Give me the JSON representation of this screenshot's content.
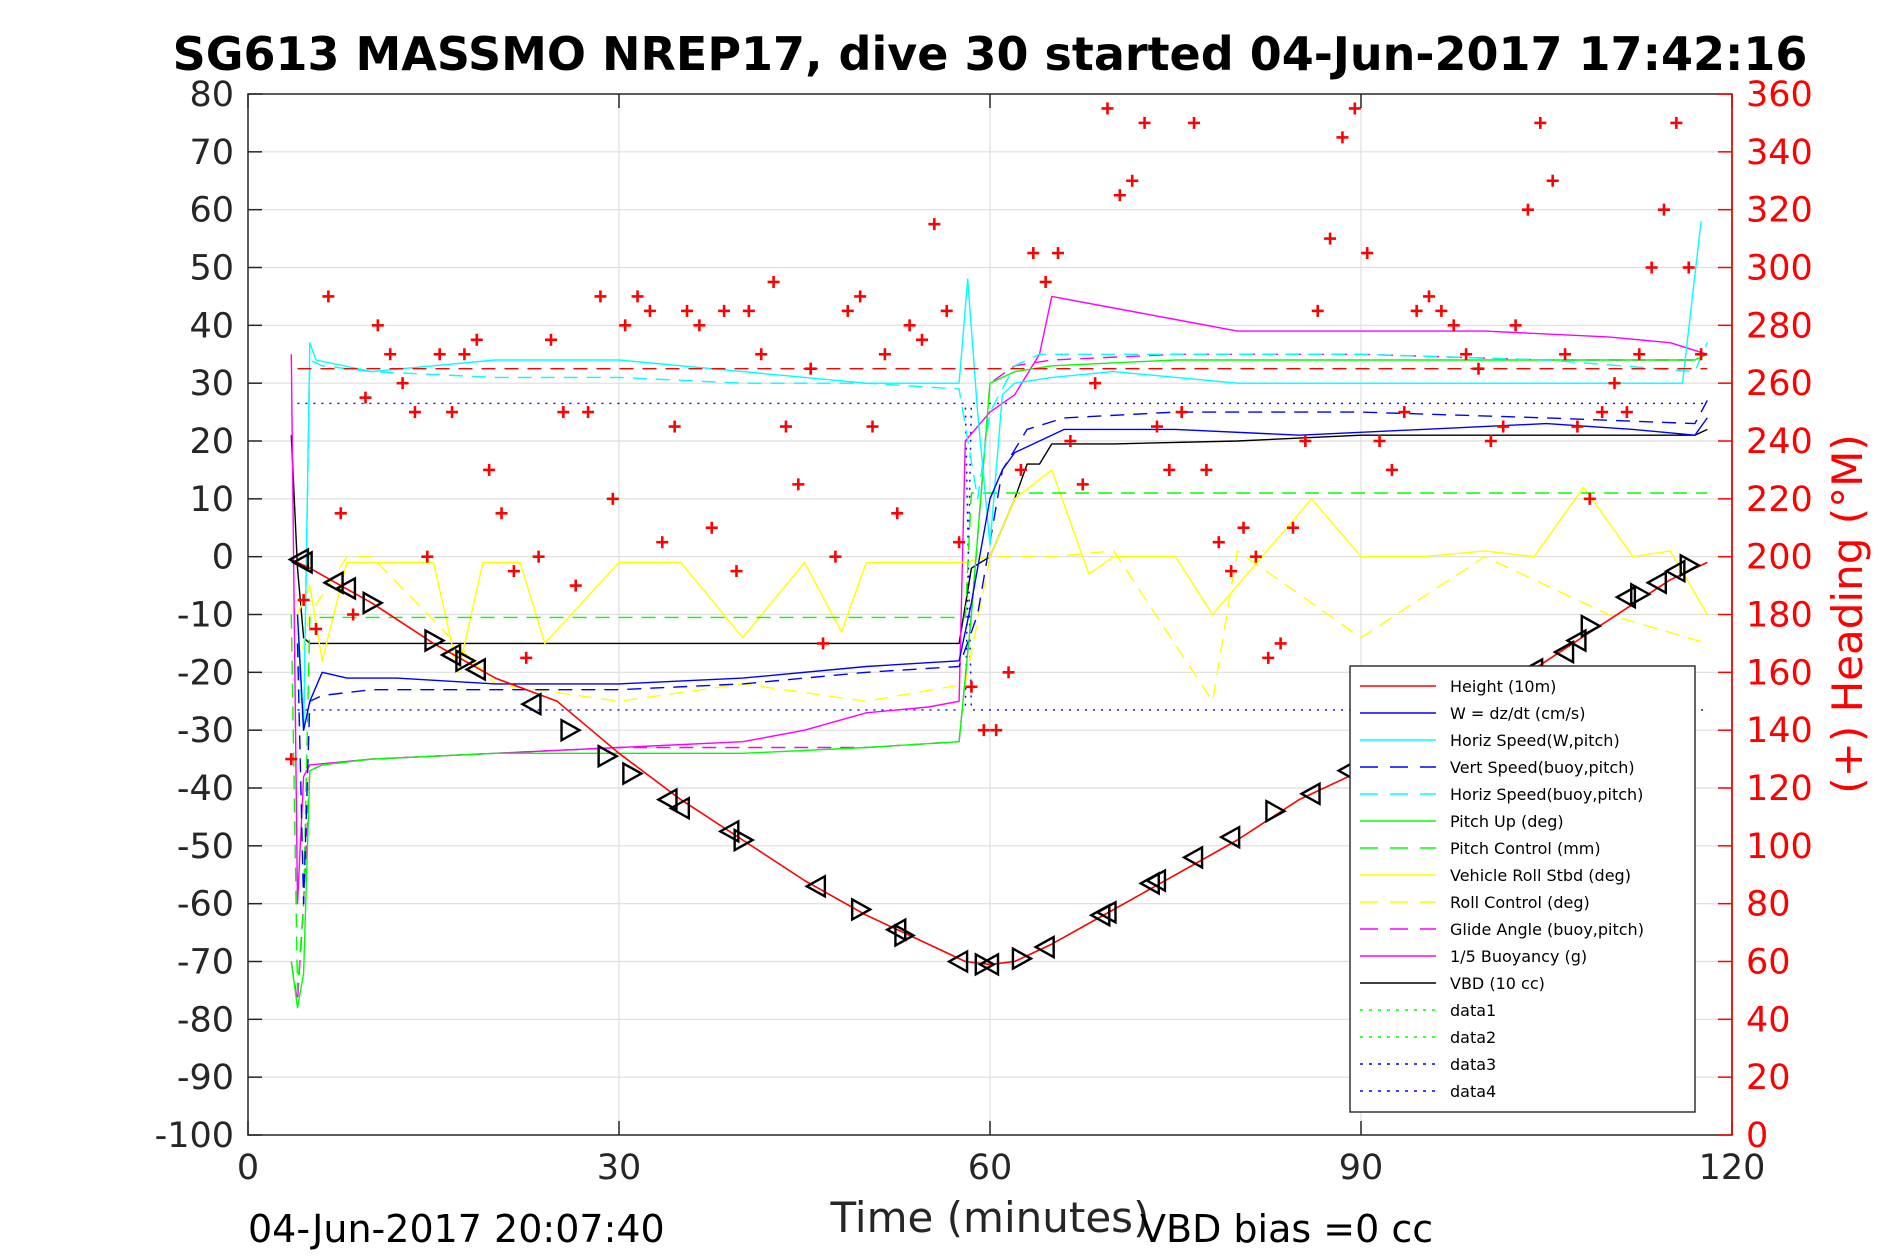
{
  "chart_data": {
    "type": "line",
    "title": "SG613 MASSMO NREP17, dive 30 started 04-Jun-2017 17:42:16",
    "xlabel": "Time (minutes)",
    "ylabel_right": "(+) Heading (°M)",
    "xlim": [
      0,
      120
    ],
    "ylim_left": [
      -100,
      80
    ],
    "ylim_right": [
      0,
      360
    ],
    "x_ticks": [
      "0",
      "30",
      "60",
      "90",
      "120"
    ],
    "y_ticks_left": [
      "80",
      "70",
      "60",
      "50",
      "40",
      "30",
      "20",
      "10",
      "0",
      "-10",
      "-20",
      "-30",
      "-40",
      "-50",
      "-60",
      "-70",
      "-80",
      "-90",
      "-100"
    ],
    "y_ticks_right": [
      "360",
      "340",
      "320",
      "300",
      "280",
      "260",
      "240",
      "220",
      "200",
      "180",
      "160",
      "140",
      "120",
      "100",
      "80",
      "60",
      "40",
      "20",
      "0"
    ],
    "grid": true,
    "legend_position": "bottom-right",
    "footer_left": "04-Jun-2017 20:07:40",
    "footer_right": "VBD bias =0 cc",
    "colors": {
      "height": "#ff0000",
      "w": "#0000ff",
      "horiz_w": "#00ffff",
      "vert_buoy": "#0000ff",
      "horiz_buoy": "#00ffff",
      "pitch_up": "#00ff00",
      "pitch_control": "#00ff00",
      "roll": "#ffff00",
      "roll_control": "#ffff00",
      "glide": "#ff00ff",
      "buoyancy": "#ff00ff",
      "vbd": "#000000",
      "data1": "#00ff00",
      "data2": "#00ff00",
      "data3": "#0000ff",
      "data4": "#0000ff"
    },
    "series": [
      {
        "name": "Height (10m)",
        "key": "height",
        "style": "solid",
        "x": [
          4,
          5,
          10,
          15,
          20,
          25,
          30,
          35,
          40,
          45,
          50,
          55,
          58,
          60,
          62,
          65,
          70,
          75,
          80,
          85,
          90,
          95,
          100,
          105,
          110,
          115,
          118
        ],
        "y": [
          -1,
          -2,
          -8,
          -15,
          -21,
          -25,
          -34,
          -42,
          -49,
          -56,
          -62,
          -67,
          -70,
          -70.5,
          -70,
          -67,
          -61,
          -55,
          -49,
          -42,
          -37,
          -31,
          -25,
          -18,
          -11,
          -4,
          -1
        ]
      },
      {
        "name": "W = dz/dt (cm/s)",
        "key": "w",
        "style": "solid",
        "x": [
          4,
          4.5,
          5,
          6,
          8,
          12,
          20,
          30,
          40,
          50,
          57.5,
          58.5,
          60,
          61,
          62,
          64,
          66,
          75,
          85,
          95,
          105,
          112,
          117,
          118
        ],
        "y": [
          -10,
          -30,
          -25,
          -20,
          -21,
          -21,
          -22,
          -22,
          -21,
          -19,
          -18,
          -8,
          10,
          15,
          18,
          20,
          22,
          22,
          21,
          22,
          23,
          22,
          21,
          24
        ]
      },
      {
        "name": "Horiz Speed(W,pitch)",
        "key": "horiz_w",
        "style": "solid",
        "x": [
          4,
          4.5,
          5,
          5.5,
          10,
          20,
          30,
          40,
          50,
          57.5,
          58.2,
          59,
          60,
          61,
          62,
          65,
          70,
          80,
          90,
          100,
          110,
          116,
          117.5
        ],
        "y": [
          -10,
          -30,
          37,
          34,
          32,
          34,
          34,
          32,
          30,
          30,
          48,
          25,
          2,
          28,
          30,
          31,
          32,
          30,
          30,
          30,
          30,
          30,
          58
        ]
      },
      {
        "name": "Vert Speed(buoy,pitch)",
        "key": "vert_buoy",
        "style": "dash",
        "x": [
          4,
          4.5,
          5,
          6,
          10,
          20,
          30,
          40,
          50,
          57.5,
          59,
          61,
          63,
          66,
          75,
          90,
          105,
          117,
          118
        ],
        "y": [
          -15,
          -60,
          -25,
          -24,
          -23,
          -23,
          -23,
          -22,
          -20,
          -19,
          -10,
          15,
          22,
          24,
          25,
          25,
          24,
          23,
          27
        ]
      },
      {
        "name": "Horiz Speed(buoy,pitch)",
        "key": "horiz_buoy",
        "style": "dash",
        "x": [
          4,
          4.5,
          5,
          6,
          10,
          20,
          30,
          40,
          50,
          57.5,
          59,
          60,
          62,
          64,
          70,
          80,
          90,
          105,
          117,
          118
        ],
        "y": [
          -15,
          -30,
          34,
          33,
          32,
          31,
          31,
          30,
          30,
          29,
          10,
          25,
          33,
          35,
          35,
          35,
          35,
          34,
          32,
          37
        ]
      },
      {
        "name": "Pitch Up (deg)",
        "key": "pitch_up",
        "style": "solid",
        "x": [
          3.5,
          4,
          4.5,
          5,
          6,
          10,
          20,
          30,
          40,
          50,
          57.5,
          58.5,
          60,
          62,
          65,
          75,
          90,
          105,
          117,
          118
        ],
        "y": [
          -70,
          -78,
          -72,
          -37,
          -36,
          -35,
          -34,
          -34,
          -34,
          -33,
          -32,
          -10,
          30,
          32,
          33,
          34,
          34,
          34,
          34,
          35
        ]
      },
      {
        "name": "Pitch Control (mm)",
        "key": "pitch_control",
        "style": "dash",
        "x": [
          3.5,
          4,
          4.5,
          5,
          58,
          58.5,
          118
        ],
        "y": [
          -10,
          -75,
          -60,
          -10.5,
          -10.5,
          11,
          11
        ]
      },
      {
        "name": "Vehicle Roll Stbd (deg)",
        "key": "roll",
        "style": "solid",
        "x": [
          4,
          5,
          6,
          8,
          10,
          15,
          17,
          19,
          22,
          24,
          30,
          35,
          40,
          45,
          48,
          50,
          55,
          58,
          60,
          62,
          65,
          68,
          70,
          75,
          78,
          82,
          86,
          90,
          95,
          100,
          104,
          108,
          112,
          115,
          118
        ],
        "y": [
          -10,
          -5,
          -18,
          -1,
          -1,
          -1,
          -20,
          -1,
          -1,
          -15,
          -1,
          -1,
          -14,
          -1,
          -13,
          -1,
          -1,
          -1,
          0,
          10,
          15,
          -3,
          0,
          0,
          -10,
          0,
          10,
          0,
          0,
          1,
          0,
          12,
          0,
          1,
          -10
        ]
      },
      {
        "name": "Roll Control (deg)",
        "key": "roll_control",
        "style": "dash",
        "x": [
          4,
          5,
          8,
          10,
          20,
          30,
          40,
          50,
          58,
          60,
          65,
          70,
          78,
          80,
          90,
          100,
          110,
          118
        ],
        "y": [
          -20,
          -10,
          0,
          0,
          -22,
          -25,
          -22,
          -25,
          -22,
          0,
          0,
          1,
          -25,
          1,
          -14,
          0,
          -10,
          -15
        ]
      },
      {
        "name": "Glide Angle (buoy,pitch)",
        "key": "glide",
        "style": "dash",
        "x": [
          3.5,
          4,
          4.5,
          5,
          6,
          10,
          20,
          30,
          40,
          50,
          57.5,
          58.5,
          60,
          62,
          65,
          75,
          90,
          105,
          117,
          118
        ],
        "y": [
          -70,
          -77,
          -60,
          -37,
          -36,
          -35,
          -34,
          -33,
          -33,
          -33,
          -32,
          -10,
          30,
          33,
          34,
          35,
          35,
          34,
          34,
          35
        ]
      },
      {
        "name": "1/5 Buoyancy (g)",
        "key": "buoyancy",
        "style": "solid",
        "x": [
          3.5,
          4,
          4.5,
          5,
          10,
          20,
          30,
          40,
          45,
          50,
          55,
          57.5,
          58,
          60,
          62,
          64,
          65,
          70,
          75,
          80,
          90,
          100,
          110,
          115,
          118
        ],
        "y": [
          35,
          -60,
          -38,
          -36,
          -35,
          -34,
          -33,
          -32,
          -30,
          -27,
          -26,
          -25,
          20,
          25,
          28,
          35,
          45,
          43,
          41,
          39,
          39,
          39,
          38,
          37,
          35
        ]
      },
      {
        "name": "VBD (10 cc)",
        "key": "vbd",
        "style": "solid",
        "x": [
          3.5,
          4,
          4.5,
          5,
          57.5,
          58.5,
          60,
          62,
          63,
          64,
          65,
          70,
          80,
          90,
          100,
          110,
          117,
          118
        ],
        "y": [
          21,
          -2,
          -14,
          -15,
          -15,
          -2,
          0,
          10,
          16,
          16,
          19.5,
          19.5,
          20,
          21,
          21,
          21,
          21,
          22
        ]
      },
      {
        "name": "data1",
        "key": "data1",
        "style": "dot",
        "x": [],
        "y": []
      },
      {
        "name": "data2",
        "key": "data2",
        "style": "dot",
        "x": [],
        "y": []
      },
      {
        "name": "data3",
        "key": "data3",
        "style": "dot",
        "x": [
          4,
          58,
          58.5,
          118
        ],
        "y": [
          26.5,
          26.5,
          -26.5,
          -26.5
        ]
      },
      {
        "name": "data4",
        "key": "data4",
        "style": "dot",
        "x": [
          4,
          58,
          58.5,
          118
        ],
        "y": [
          -26.5,
          -26.5,
          26.5,
          26.5
        ]
      }
    ],
    "reference_lines": [
      {
        "key": "height",
        "style": "dash",
        "y": 32.5,
        "xlim": [
          4,
          118
        ]
      }
    ],
    "heading": {
      "marker": "+",
      "unit_axis": "right",
      "x": [
        3.5,
        4.5,
        5.5,
        6.5,
        7.5,
        8.5,
        9.5,
        10.5,
        11.5,
        12.5,
        13.5,
        14.5,
        15.5,
        16.5,
        17.5,
        18.5,
        19.5,
        20.5,
        21.5,
        22.5,
        23.5,
        24.5,
        25.5,
        26.5,
        27.5,
        28.5,
        29.5,
        30.5,
        31.5,
        32.5,
        33.5,
        34.5,
        35.5,
        36.5,
        37.5,
        38.5,
        39.5,
        40.5,
        41.5,
        42.5,
        43.5,
        44.5,
        45.5,
        46.5,
        47.5,
        48.5,
        49.5,
        50.5,
        51.5,
        52.5,
        53.5,
        54.5,
        55.5,
        56.5,
        57.5,
        58.5,
        59.5,
        60.5,
        61.5,
        62.5,
        63.5,
        64.5,
        65.5,
        66.5,
        67.5,
        68.5,
        69.5,
        70.5,
        71.5,
        72.5,
        73.5,
        74.5,
        75.5,
        76.5,
        77.5,
        78.5,
        79.5,
        80.5,
        81.5,
        82.5,
        83.5,
        84.5,
        85.5,
        86.5,
        87.5,
        88.5,
        89.5,
        90.5,
        91.5,
        92.5,
        93.5,
        94.5,
        95.5,
        96.5,
        97.5,
        98.5,
        99.5,
        100.5,
        101.5,
        102.5,
        103.5,
        104.5,
        105.5,
        106.5,
        107.5,
        108.5,
        109.5,
        110.5,
        111.5,
        112.5,
        113.5,
        114.5,
        115.5,
        116.5,
        117.5
      ],
      "y": [
        130,
        185,
        175,
        290,
        215,
        180,
        255,
        280,
        270,
        260,
        250,
        200,
        270,
        250,
        270,
        275,
        230,
        215,
        195,
        165,
        200,
        275,
        250,
        190,
        250,
        290,
        220,
        280,
        290,
        285,
        205,
        245,
        285,
        280,
        210,
        285,
        195,
        285,
        270,
        295,
        245,
        225,
        265,
        170,
        200,
        285,
        290,
        245,
        270,
        215,
        280,
        275,
        315,
        285,
        205,
        155,
        140,
        140,
        160,
        230,
        305,
        295,
        305,
        240,
        225,
        260,
        355,
        325,
        330,
        350,
        245,
        230,
        250,
        350,
        230,
        205,
        195,
        210,
        200,
        165,
        170,
        210,
        240,
        285,
        310,
        345,
        355,
        305,
        240,
        230,
        250,
        285,
        290,
        285,
        280,
        270,
        265,
        240,
        245,
        280,
        320,
        350,
        330,
        270,
        245,
        220,
        250,
        260,
        250,
        270,
        300,
        320,
        350,
        300,
        270
      ]
    },
    "annotations": {
      "marker": "triangle",
      "x": [
        4.2,
        4.5,
        7,
        8,
        10,
        15,
        16.5,
        17.5,
        18.5,
        23,
        26,
        29,
        31,
        34,
        35,
        39,
        40,
        46,
        49.5,
        52.5,
        53,
        57.5,
        59.5,
        60,
        62.5,
        64.5,
        69,
        69.5,
        73,
        73.5,
        76.5,
        79.5,
        83,
        86,
        89,
        91,
        93,
        95,
        98,
        100,
        101,
        104,
        106.5,
        107.5,
        108.5,
        111.5,
        112.5,
        114,
        115.5,
        116.5
      ],
      "y": [
        -0.5,
        -1,
        -4.5,
        -5.5,
        -8,
        -14.5,
        -17,
        -18,
        -19.5,
        -25.5,
        -30,
        -34.5,
        -37.5,
        -42,
        -43.5,
        -47.5,
        -49,
        -57,
        -61,
        -64.5,
        -65.5,
        -70,
        -70.5,
        -70.5,
        -69.5,
        -67.5,
        -62,
        -61.5,
        -56.5,
        -56,
        -52,
        -48.5,
        -44,
        -41,
        -37,
        -35,
        -31,
        -29,
        -26,
        -24.5,
        -23.5,
        -19.5,
        -16.5,
        -14.5,
        -12,
        -7,
        -6.5,
        -4.5,
        -2.5,
        -1.5
      ],
      "direction": [
        "left",
        "left",
        "left",
        "left",
        "right",
        "right",
        "left",
        "right",
        "left",
        "left",
        "right",
        "right",
        "right",
        "left",
        "left",
        "left",
        "right",
        "left",
        "right",
        "left",
        "right",
        "left",
        "right",
        "left",
        "right",
        "left",
        "left",
        "left",
        "left",
        "left",
        "left",
        "left",
        "right",
        "left",
        "left",
        "left",
        "left",
        "left",
        "left",
        "left",
        "left",
        "left",
        "left",
        "left",
        "right",
        "left",
        "right",
        "left",
        "left",
        "right"
      ]
    }
  }
}
